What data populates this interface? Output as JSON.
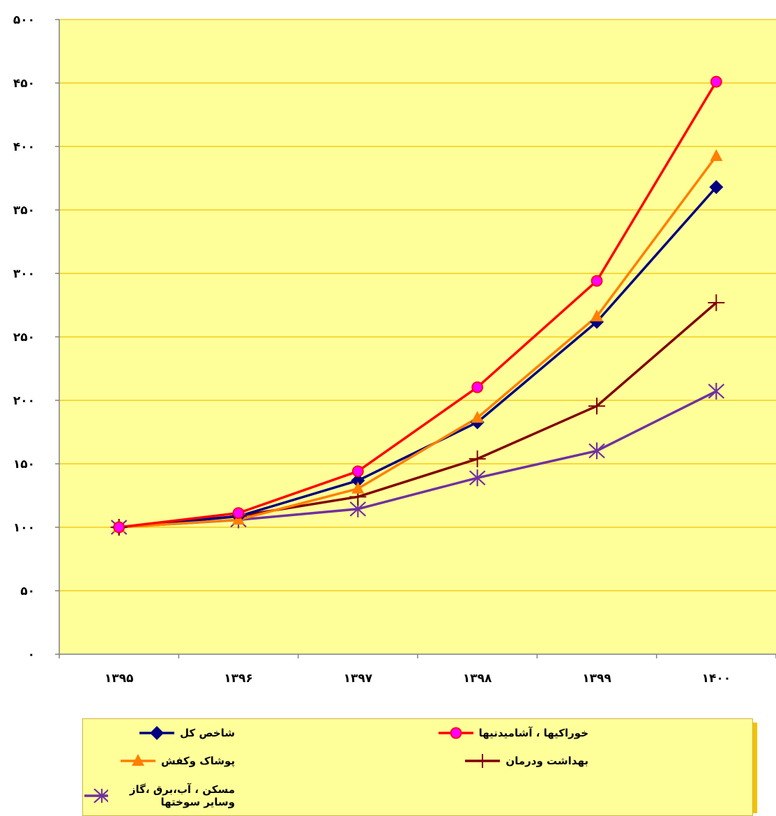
{
  "chart_data": {
    "type": "line",
    "title": "",
    "xlabel": "",
    "ylabel": "",
    "categories": [
      "۱۳۹۵",
      "۱۳۹۶",
      "۱۳۹۷",
      "۱۳۹۸",
      "۱۳۹۹",
      "۱۴۰۰"
    ],
    "ylim": [
      0,
      500
    ],
    "yticks": [
      0,
      50,
      100,
      150,
      200,
      250,
      300,
      350,
      400,
      450,
      500
    ],
    "ytick_labels": [
      "۰",
      "۵۰",
      "۱۰۰",
      "۱۵۰",
      "۲۰۰",
      "۲۵۰",
      "۳۰۰",
      "۳۵۰",
      "۴۰۰",
      "۴۵۰",
      "۵۰۰"
    ],
    "grid": "horizontal",
    "legend_placement": "bottom",
    "plot_background": "#ffff99",
    "grid_color": "#f2c200",
    "series": [
      {
        "name": "شاخص کل",
        "color": "#000080",
        "marker": "diamond",
        "values": [
          100,
          108.6,
          136.8,
          182.7,
          261.8,
          368
        ]
      },
      {
        "name": "خوراکیها ، آشامیدنیها",
        "color": "#ff0000",
        "marker": "circle",
        "values": [
          100,
          111.2,
          144.1,
          210.3,
          294.1,
          451
        ]
      },
      {
        "name": "پوشاک وکفش",
        "color": "#ff7f00",
        "marker": "triangle",
        "values": [
          100,
          105.9,
          130.4,
          186.2,
          266.1,
          392.4
        ]
      },
      {
        "name": "بهداشت ودرمان",
        "color": "#800000",
        "marker": "plus",
        "values": [
          100,
          108.8,
          124,
          153.9,
          195.5,
          276.9
        ]
      },
      {
        "name": "مسکن ، آب،برق ،گاز وسایر سوختها",
        "color": "#7030a0",
        "marker": "asterisk",
        "values": [
          100,
          105.8,
          114.4,
          138.9,
          160.2,
          207.2
        ]
      }
    ]
  }
}
